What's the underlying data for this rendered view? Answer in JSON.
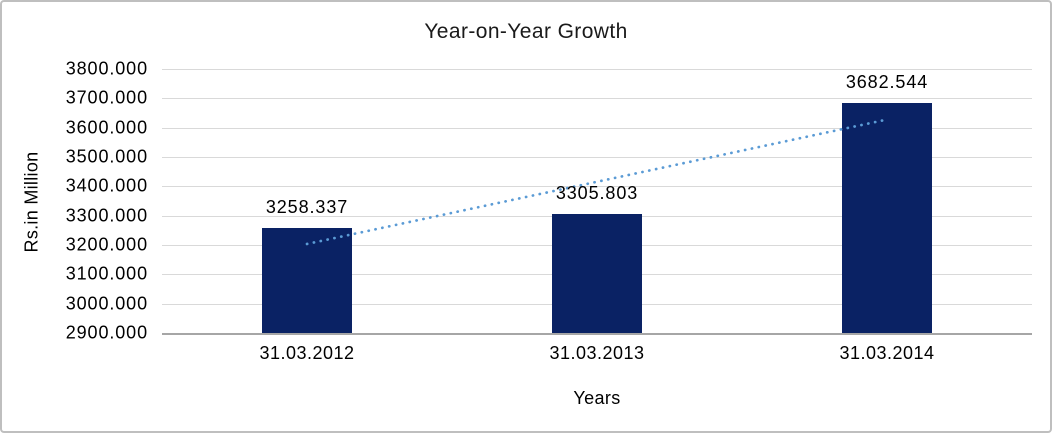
{
  "chart_data": {
    "type": "bar",
    "title": "Year-on-Year Growth",
    "xlabel": "Years",
    "ylabel": "Rs.in Million",
    "categories": [
      "31.03.2012",
      "31.03.2013",
      "31.03.2014"
    ],
    "values": [
      3258.337,
      3305.803,
      3682.544
    ],
    "data_labels": [
      "3258.337",
      "3305.803",
      "3682.544"
    ],
    "ylim": [
      2900,
      3800
    ],
    "y_tick_step": 100,
    "y_ticks": [
      "3800.000",
      "3700.000",
      "3600.000",
      "3500.000",
      "3400.000",
      "3300.000",
      "3200.000",
      "3100.000",
      "3000.000",
      "2900.000"
    ],
    "grid": true,
    "legend": "none",
    "bar_color": "#0a2264",
    "gridline_color": "#d9d9d9",
    "axis_line_color": "#a6a6a6",
    "trendline": {
      "type": "linear",
      "style": "dotted",
      "color": "#5b9bd5",
      "y_start": 3203.5,
      "y_end": 3627.7
    }
  }
}
